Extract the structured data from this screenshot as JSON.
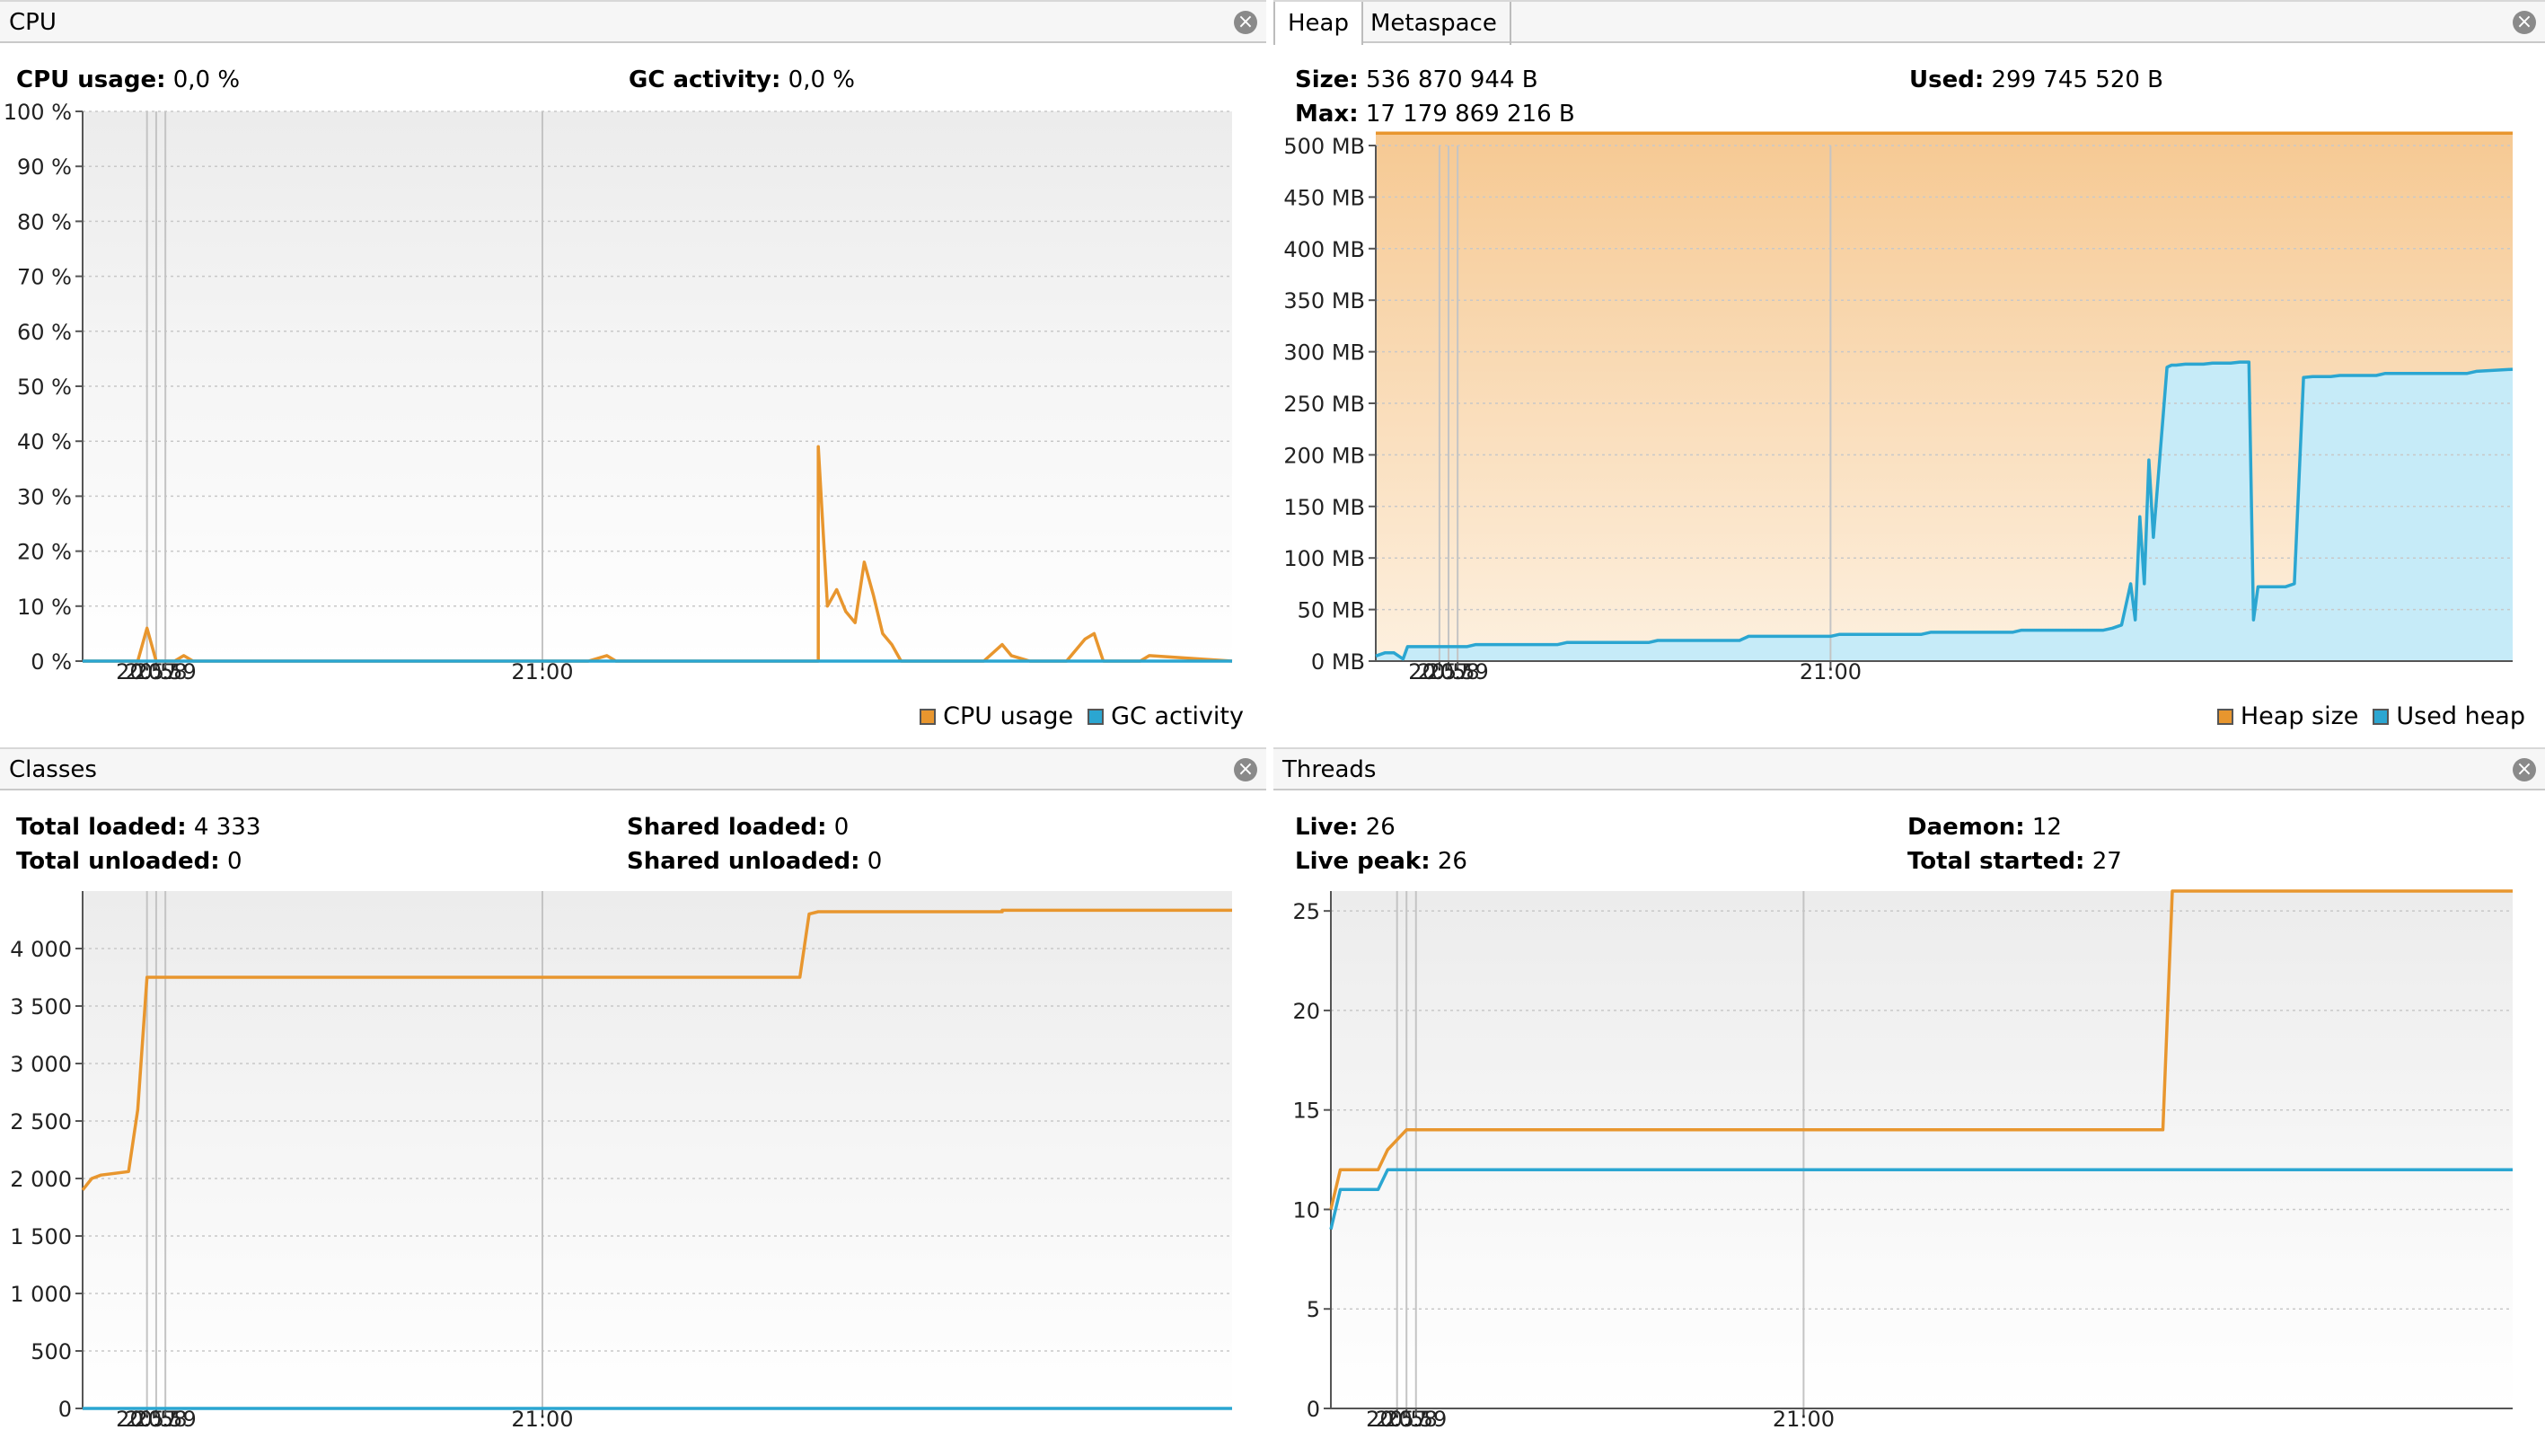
{
  "cpu": {
    "title": "CPU",
    "cpu_usage_label": "CPU usage:",
    "cpu_usage_value": "0,0 %",
    "gc_label": "GC activity:",
    "gc_value": "0,0 %",
    "legend": [
      "CPU usage",
      "GC activity"
    ]
  },
  "heap": {
    "tabs": [
      "Heap",
      "Metaspace"
    ],
    "active_tab": "Heap",
    "size_label": "Size:",
    "size_value": "536 870 944 B",
    "used_label": "Used:",
    "used_value": "299 745 520 B",
    "max_label": "Max:",
    "max_value": "17 179 869 216 B",
    "legend": [
      "Heap size",
      "Used heap"
    ]
  },
  "classes": {
    "title": "Classes",
    "total_loaded_label": "Total loaded:",
    "total_loaded_value": "4 333",
    "total_unloaded_label": "Total unloaded:",
    "total_unloaded_value": "0",
    "shared_loaded_label": "Shared loaded:",
    "shared_loaded_value": "0",
    "shared_unloaded_label": "Shared unloaded:",
    "shared_unloaded_value": "0"
  },
  "threads": {
    "title": "Threads",
    "live_label": "Live:",
    "live_value": "26",
    "live_peak_label": "Live peak:",
    "live_peak_value": "26",
    "daemon_label": "Daemon:",
    "daemon_value": "12",
    "total_started_label": "Total started:",
    "total_started_value": "27"
  },
  "colors": {
    "orange": "#e8962e",
    "blue": "#2ba6d1",
    "heap_fill_top": "#f6c993",
    "heap_fill_bottom": "#fdf0df",
    "used_fill": "#c6ebf8",
    "plot_bg_top": "#ececec",
    "plot_bg_bottom": "#ffffff"
  },
  "chart_data": [
    {
      "id": "cpu",
      "type": "line",
      "title": "",
      "xlabel": "",
      "ylabel": "",
      "xlim": [
        20.5,
        21.75
      ],
      "ylim": [
        0,
        100
      ],
      "x_ticks": [
        "20:57",
        "20:58",
        "20:59",
        "21:00"
      ],
      "y_ticks": [
        "0 %",
        "10 %",
        "20 %",
        "30 %",
        "40 %",
        "50 %",
        "60 %",
        "70 %",
        "80 %",
        "90 %",
        "100 %"
      ],
      "grid": true,
      "legend_position": "bottom-right",
      "series": [
        {
          "name": "CPU usage",
          "color": "#e8962e",
          "x": [
            20.5,
            20.53,
            20.56,
            20.57,
            20.58,
            20.6,
            20.61,
            20.62,
            20.66,
            20.68,
            20.8,
            21.05,
            21.07,
            21.08,
            21.1,
            21.25,
            21.27,
            21.29,
            21.3,
            21.3,
            21.31,
            21.32,
            21.33,
            21.34,
            21.35,
            21.36,
            21.37,
            21.38,
            21.39,
            21.4,
            21.42,
            21.48,
            21.5,
            21.51,
            21.53,
            21.57,
            21.59,
            21.6,
            21.61,
            21.65,
            21.66,
            21.75
          ],
          "y": [
            0,
            0,
            0,
            6,
            0,
            0,
            1,
            0,
            0,
            0,
            0,
            0,
            1,
            0,
            0,
            0,
            0,
            0,
            0,
            39,
            10,
            13,
            9,
            7,
            18,
            12,
            5,
            3,
            0,
            0,
            0,
            0,
            3,
            1,
            0,
            0,
            4,
            5,
            0,
            0,
            1,
            0
          ]
        },
        {
          "name": "GC activity",
          "color": "#2ba6d1",
          "x": [
            20.5,
            21.75
          ],
          "y": [
            0,
            0
          ]
        }
      ]
    },
    {
      "id": "heap",
      "type": "area",
      "title": "",
      "xlabel": "",
      "ylabel": "",
      "xlim": [
        20.5,
        21.75
      ],
      "ylim": [
        0,
        500
      ],
      "x_ticks": [
        "20:57",
        "20:58",
        "20:59",
        "21:00"
      ],
      "y_ticks": [
        "0 MB",
        "50 MB",
        "100 MB",
        "150 MB",
        "200 MB",
        "250 MB",
        "300 MB",
        "350 MB",
        "400 MB",
        "450 MB",
        "500 MB"
      ],
      "grid": true,
      "legend_position": "bottom-right",
      "series": [
        {
          "name": "Heap size",
          "color": "#e8962e",
          "x": [
            20.5,
            21.75
          ],
          "y": [
            512,
            512
          ]
        },
        {
          "name": "Used heap",
          "color": "#2ba6d1",
          "x": [
            20.5,
            20.51,
            20.52,
            20.53,
            20.535,
            20.55,
            20.56,
            20.6,
            20.61,
            20.7,
            20.71,
            20.8,
            20.81,
            20.9,
            20.91,
            21.0,
            21.01,
            21.1,
            21.11,
            21.2,
            21.21,
            21.3,
            21.31,
            21.32,
            21.33,
            21.335,
            21.34,
            21.345,
            21.35,
            21.355,
            21.36,
            21.37,
            21.375,
            21.38,
            21.39,
            21.41,
            21.42,
            21.44,
            21.45,
            21.46,
            21.465,
            21.47,
            21.48,
            21.5,
            21.51,
            21.52,
            21.53,
            21.55,
            21.56,
            21.6,
            21.61,
            21.7,
            21.71,
            21.75
          ],
          "y": [
            5,
            8,
            8,
            2,
            14,
            14,
            14,
            14,
            16,
            16,
            18,
            18,
            20,
            20,
            24,
            24,
            26,
            26,
            28,
            28,
            30,
            30,
            32,
            35,
            75,
            40,
            140,
            75,
            195,
            120,
            175,
            285,
            287,
            287,
            288,
            288,
            289,
            289,
            290,
            290,
            40,
            72,
            72,
            72,
            75,
            275,
            276,
            276,
            277,
            277,
            279,
            279,
            281,
            283
          ]
        }
      ]
    },
    {
      "id": "classes",
      "type": "line",
      "title": "",
      "xlabel": "",
      "ylabel": "",
      "xlim": [
        20.5,
        21.75
      ],
      "ylim": [
        0,
        4500
      ],
      "x_ticks": [
        "20:57",
        "20:58",
        "20:59",
        "21:00"
      ],
      "y_ticks": [
        "0",
        "500",
        "1 000",
        "1 500",
        "2 000",
        "2 500",
        "3 000",
        "3 500",
        "4 000"
      ],
      "grid": true,
      "series": [
        {
          "name": "",
          "color": "#e8962e",
          "x": [
            20.5,
            20.51,
            20.52,
            20.55,
            20.56,
            20.57,
            21.28,
            21.29,
            21.3,
            21.5,
            21.5,
            21.75
          ],
          "y": [
            1900,
            2000,
            2030,
            2060,
            2600,
            3750,
            3750,
            4300,
            4320,
            4320,
            4333,
            4333
          ]
        },
        {
          "name": "",
          "color": "#2ba6d1",
          "x": [
            20.5,
            21.75
          ],
          "y": [
            0,
            0
          ]
        }
      ]
    },
    {
      "id": "threads",
      "type": "line",
      "title": "",
      "xlabel": "",
      "ylabel": "",
      "xlim": [
        20.5,
        21.75
      ],
      "ylim": [
        0,
        26
      ],
      "x_ticks": [
        "20:57",
        "20:58",
        "20:59",
        "21:00"
      ],
      "y_ticks": [
        "0",
        "5",
        "10",
        "15",
        "20",
        "25"
      ],
      "grid": true,
      "series": [
        {
          "name": "",
          "color": "#e8962e",
          "x": [
            20.5,
            20.51,
            20.52,
            20.55,
            20.56,
            20.58,
            21.38,
            21.39,
            21.75
          ],
          "y": [
            10,
            12,
            12,
            12,
            13,
            14,
            14,
            26,
            26
          ]
        },
        {
          "name": "",
          "color": "#2ba6d1",
          "x": [
            20.5,
            20.51,
            20.52,
            20.55,
            20.56,
            20.58,
            21.75
          ],
          "y": [
            9,
            11,
            11,
            11,
            12,
            12,
            12
          ]
        }
      ]
    }
  ]
}
